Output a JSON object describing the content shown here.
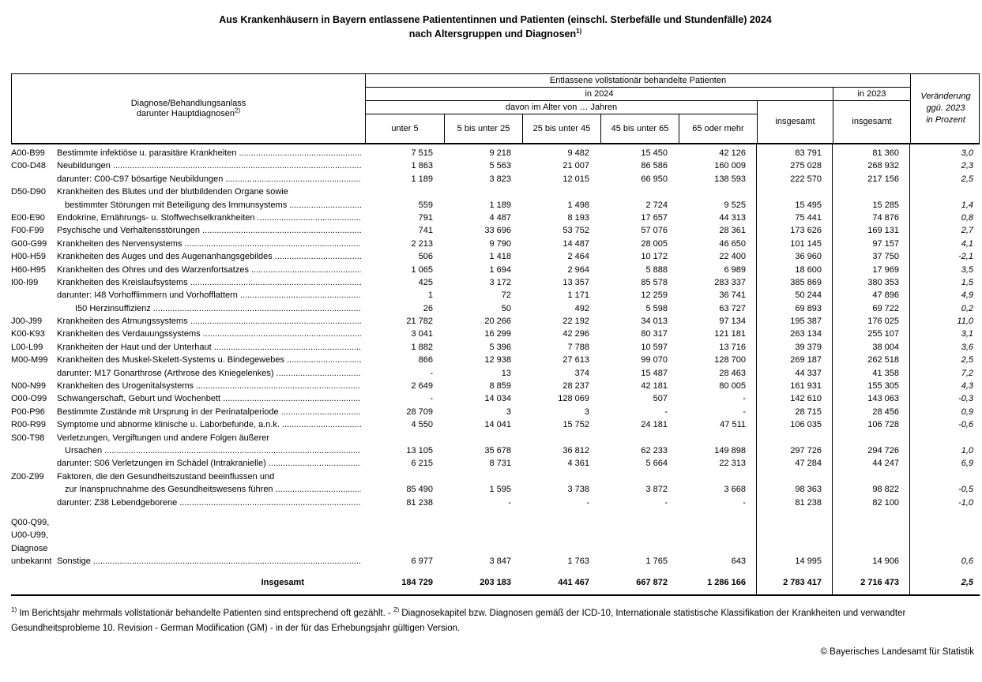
{
  "title": {
    "line1": "Aus Krankenhäusern in Bayern entlassene Patiententinnen und Patienten (einschl. Sterbefälle und Stundenfälle) 2024",
    "line2": "nach Altersgruppen und Diagnosen",
    "line2_sup": "1)"
  },
  "table": {
    "header": {
      "col1_line1": "Diagnose/Behandlungsanlass",
      "col1_line2": "darunter Hauptdiagnosen",
      "col1_sup": "2)",
      "top_span": "Entlassene vollstationär behandelte Patienten",
      "in2024": "in 2024",
      "in2023": "in 2023",
      "davon": "davon im Alter von … Jahren",
      "age_cols": [
        "unter 5",
        "5 bis unter 25",
        "25 bis unter 45",
        "45 bis unter 65",
        "65 oder mehr"
      ],
      "insgesamt2024": "insgesamt",
      "insgesamt2023": "insgesamt",
      "change_l1": "Veränderung",
      "change_l2": "ggü. 2023",
      "change_l3": "in Prozent"
    },
    "rows": [
      {
        "code": "A00-B99",
        "label": "Bestimmte infektiöse u. parasitäre Krankheiten",
        "dots": true,
        "indent": 0,
        "values": [
          "7 515",
          "9 218",
          "9 482",
          "15 450",
          "42 126",
          "83 791",
          "81 360",
          "3,0"
        ]
      },
      {
        "code": "C00-D48",
        "label": "Neubildungen",
        "dots": true,
        "indent": 0,
        "values": [
          "1 863",
          "5 563",
          "21 007",
          "86 586",
          "160 009",
          "275 028",
          "268 932",
          "2,3"
        ]
      },
      {
        "code": "",
        "label": "darunter: C00-C97 bösartige Neubildungen",
        "dots": true,
        "indent": 0,
        "values": [
          "1 189",
          "3 823",
          "12 015",
          "66 950",
          "138 593",
          "222 570",
          "217 156",
          "2,5"
        ]
      },
      {
        "code": "D50-D90",
        "label": "Krankheiten des Blutes und der blutbildenden Organe sowie",
        "dots": false,
        "indent": 0,
        "values": null
      },
      {
        "code": "",
        "label": "bestimmter Störungen mit Beteiligung des Immunsystems",
        "dots": true,
        "indent": 1,
        "values": [
          "559",
          "1 189",
          "1 498",
          "2 724",
          "9 525",
          "15 495",
          "15 285",
          "1,4"
        ]
      },
      {
        "code": "E00-E90",
        "label": "Endokrine, Ernährungs- u. Stoffwechselkrankheiten",
        "dots": true,
        "indent": 0,
        "values": [
          "791",
          "4 487",
          "8 193",
          "17 657",
          "44 313",
          "75 441",
          "74 876",
          "0,8"
        ]
      },
      {
        "code": "F00-F99",
        "label": "Psychische und Verhaltensstörungen",
        "dots": true,
        "indent": 0,
        "values": [
          "741",
          "33 696",
          "53 752",
          "57 076",
          "28 361",
          "173 626",
          "169 131",
          "2,7"
        ]
      },
      {
        "code": "G00-G99",
        "label": "Krankheiten des Nervensystems",
        "dots": true,
        "indent": 0,
        "values": [
          "2 213",
          "9 790",
          "14 487",
          "28 005",
          "46 650",
          "101 145",
          "97 157",
          "4,1"
        ]
      },
      {
        "code": "H00-H59",
        "label": "Krankheiten des Auges und des Augenanhangsgebildes",
        "dots": true,
        "indent": 0,
        "values": [
          "506",
          "1 418",
          "2 464",
          "10 172",
          "22 400",
          "36 960",
          "37 750",
          "-2,1"
        ]
      },
      {
        "code": "H60-H95",
        "label": "Krankheiten des Ohres und des Warzenfortsatzes",
        "dots": true,
        "indent": 0,
        "values": [
          "1 065",
          "1 694",
          "2 964",
          "5 888",
          "6 989",
          "18 600",
          "17 969",
          "3,5"
        ]
      },
      {
        "code": "I00-I99",
        "label": "Krankheiten des Kreislaufsystems",
        "dots": true,
        "indent": 0,
        "values": [
          "425",
          "3 172",
          "13 357",
          "85 578",
          "283 337",
          "385 869",
          "380 353",
          "1,5"
        ]
      },
      {
        "code": "",
        "label": "darunter: I48 Vorhofflimmern und Vorhofflattern",
        "dots": true,
        "indent": 0,
        "values": [
          "1",
          "72",
          "1 171",
          "12 259",
          "36 741",
          "50 244",
          "47 896",
          "4,9"
        ]
      },
      {
        "code": "",
        "label": "I50 Herzinsuffizienz",
        "dots": true,
        "indent": 2,
        "values": [
          "26",
          "50",
          "492",
          "5 598",
          "63 727",
          "69 893",
          "69 722",
          "0,2"
        ]
      },
      {
        "code": "J00-J99",
        "label": "Krankheiten des Atmungssystems",
        "dots": true,
        "indent": 0,
        "values": [
          "21 782",
          "20 266",
          "22 192",
          "34 013",
          "97 134",
          "195 387",
          "176 025",
          "11,0"
        ]
      },
      {
        "code": "K00-K93",
        "label": "Krankheiten des Verdauungssystems",
        "dots": true,
        "indent": 0,
        "values": [
          "3 041",
          "16 299",
          "42 296",
          "80 317",
          "121 181",
          "263 134",
          "255 107",
          "3,1"
        ]
      },
      {
        "code": "L00-L99",
        "label": "Krankheiten der Haut und der Unterhaut",
        "dots": true,
        "indent": 0,
        "values": [
          "1 882",
          "5 396",
          "7 788",
          "10 597",
          "13 716",
          "39 379",
          "38 004",
          "3,6"
        ]
      },
      {
        "code": "M00-M99",
        "label": "Krankheiten des Muskel-Skelett-Systems u. Bindegewebes",
        "dots": true,
        "indent": 0,
        "values": [
          "866",
          "12 938",
          "27 613",
          "99 070",
          "128 700",
          "269 187",
          "262 518",
          "2,5"
        ]
      },
      {
        "code": "",
        "label": "darunter: M17 Gonarthrose (Arthrose des Kniegelenkes)",
        "dots": true,
        "indent": 0,
        "values": [
          "-",
          "13",
          "374",
          "15 487",
          "28 463",
          "44 337",
          "41 358",
          "7,2"
        ]
      },
      {
        "code": "N00-N99",
        "label": "Krankheiten des Urogenitalsystems",
        "dots": true,
        "indent": 0,
        "values": [
          "2 649",
          "8 859",
          "28 237",
          "42 181",
          "80 005",
          "161 931",
          "155 305",
          "4,3"
        ]
      },
      {
        "code": "O00-O99",
        "label": "Schwangerschaft, Geburt und Wochenbett",
        "dots": true,
        "indent": 0,
        "values": [
          "-",
          "14 034",
          "128 069",
          "507",
          "-",
          "142 610",
          "143 063",
          "-0,3"
        ]
      },
      {
        "code": "P00-P96",
        "label": "Bestimmte Zustände mit Ursprung in der Perinatalperiode",
        "dots": true,
        "indent": 0,
        "values": [
          "28 709",
          "3",
          "3",
          "-",
          "-",
          "28 715",
          "28 456",
          "0,9"
        ]
      },
      {
        "code": "R00-R99",
        "label": "Symptome und abnorme klinische u. Laborbefunde, a.n.k.",
        "dots": true,
        "indent": 0,
        "values": [
          "4 550",
          "14 041",
          "15 752",
          "24 181",
          "47 511",
          "106 035",
          "106 728",
          "-0,6"
        ]
      },
      {
        "code": "S00-T98",
        "label": "Verletzungen, Vergiftungen und andere Folgen äußerer",
        "dots": false,
        "indent": 0,
        "values": null
      },
      {
        "code": "",
        "label": "Ursachen",
        "dots": true,
        "indent": 1,
        "values": [
          "13 105",
          "35 678",
          "36 812",
          "62 233",
          "149 898",
          "297 726",
          "294 726",
          "1,0"
        ]
      },
      {
        "code": "",
        "label": "darunter: S06 Verletzungen im Schädel (Intrakranielle)",
        "dots": true,
        "indent": 0,
        "values": [
          "6 215",
          "8 731",
          "4 361",
          "5 664",
          "22 313",
          "47 284",
          "44 247",
          "6,9"
        ]
      },
      {
        "code": "Z00-Z99",
        "label": "Faktoren, die den Gesundheitszustand beeinflussen und",
        "dots": false,
        "indent": 0,
        "values": null
      },
      {
        "code": "",
        "label": "zur Inanspruchnahme des Gesundheitswesens führen",
        "dots": true,
        "indent": 1,
        "values": [
          "85 490",
          "1 595",
          "3 738",
          "3 872",
          "3 668",
          "98 363",
          "98 822",
          "-0,5"
        ]
      },
      {
        "code": "",
        "label": "darunter: Z38 Lebendgeborene",
        "dots": true,
        "indent": 0,
        "values": [
          "81 238",
          "-",
          "-",
          "-",
          "-",
          "81 238",
          "82 100",
          "-1,0"
        ]
      },
      {
        "spacer": true
      },
      {
        "code": "Q00-Q99,",
        "label": "",
        "dots": false,
        "indent": 0,
        "values": null
      },
      {
        "code": "U00-U99,",
        "label": "",
        "dots": false,
        "indent": 0,
        "values": null
      },
      {
        "code": "Diagnose",
        "label": "",
        "dots": false,
        "indent": 0,
        "values": null
      },
      {
        "code": "unbekannt",
        "label": "Sonstige",
        "dots": true,
        "indent": 0,
        "values": [
          "6 977",
          "3 847",
          "1 763",
          "1 765",
          "643",
          "14 995",
          "14 906",
          "0,6"
        ]
      }
    ],
    "total_row": {
      "label": "Insgesamt",
      "values": [
        "184 729",
        "203 183",
        "441 467",
        "667 872",
        "1 286 166",
        "2 783 417",
        "2 716 473",
        "2,5"
      ]
    }
  },
  "footnotes": {
    "fn1_sup": "1)",
    "fn1_text": " Im Berichtsjahr mehrmals vollstationär behandelte Patienten sind entsprechend oft gezählt. - ",
    "fn2_sup": "2)",
    "fn2_text": " Diagnosekapitel bzw. Diagnosen gemäß der ICD-10,  Internationale statistische Klassifikation der Krankheiten und verwandter Gesundheitsprobleme 10. Revision - German Modification (GM) - in der für das Erhebungsjahr gültigen Version."
  },
  "copyright": "© Bayerisches Landesamt für Statistik"
}
